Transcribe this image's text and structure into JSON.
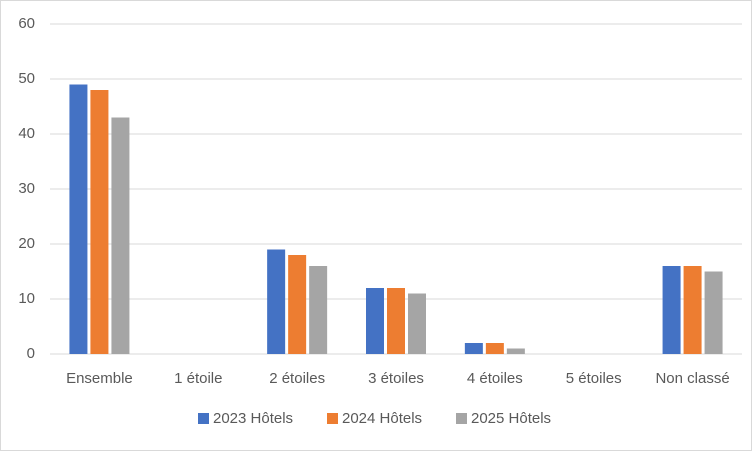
{
  "chart_data": {
    "type": "bar",
    "categories": [
      "Ensemble",
      "1 étoile",
      "2 étoiles",
      "3 étoiles",
      "4 étoiles",
      "5 étoiles",
      "Non classé"
    ],
    "series": [
      {
        "name": "2023 Hôtels",
        "color": "#4472c4",
        "values": [
          49,
          0,
          19,
          12,
          2,
          0,
          16
        ]
      },
      {
        "name": "2024 Hôtels",
        "color": "#ed7d31",
        "values": [
          48,
          0,
          18,
          12,
          2,
          0,
          16
        ]
      },
      {
        "name": "2025 Hôtels",
        "color": "#a5a5a5",
        "values": [
          43,
          0,
          16,
          11,
          1,
          0,
          15
        ]
      }
    ],
    "ylim": [
      0,
      60
    ],
    "yticks": [
      0,
      10,
      20,
      30,
      40,
      50,
      60
    ],
    "grid": true,
    "legend": "bottom"
  }
}
